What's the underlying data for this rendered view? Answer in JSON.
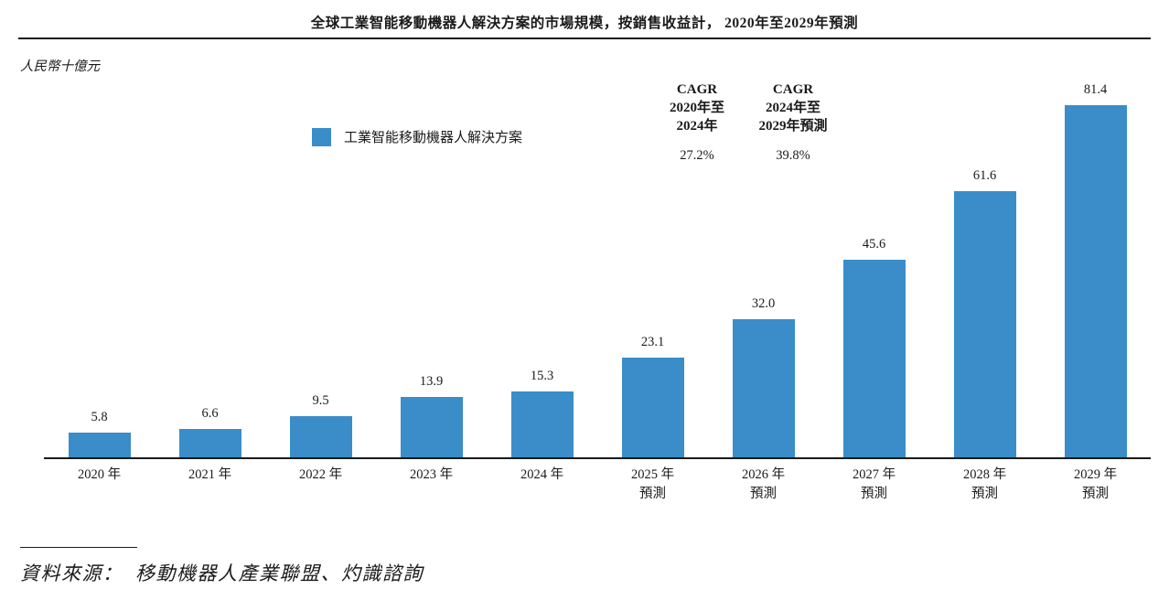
{
  "accent_color": "#3A8DC8",
  "header": {
    "title": "全球工業智能移動機器人解決方案的市場規模，按銷售收益計， 2020年至2029年預測"
  },
  "y_axis_unit": "人民幣十億元",
  "legend": {
    "label": "工業智能移動機器人解決方案"
  },
  "cagr_columns": [
    {
      "line1": "CAGR",
      "line2": "2020年至",
      "line3": "2024年",
      "value": "27.2%"
    },
    {
      "line1": "CAGR",
      "line2": "2024年至",
      "line3": "2029年預測",
      "value": "39.8%"
    }
  ],
  "footer": {
    "source": "資料來源：  移動機器人產業聯盟、灼識諮詢"
  },
  "chart_data": {
    "type": "bar",
    "title": "全球工業智能移動機器人解決方案的市場規模，按銷售收益計， 2020年至2029年預測",
    "xlabel": "",
    "ylabel": "人民幣十億元",
    "categories": [
      "2020 年",
      "2021 年",
      "2022 年",
      "2023 年",
      "2024 年",
      "2025 年",
      "2026 年",
      "2027 年",
      "2028 年",
      "2029 年"
    ],
    "category_subs": [
      "",
      "",
      "",
      "",
      "",
      "預測",
      "預測",
      "預測",
      "預測",
      "預測"
    ],
    "values": [
      5.8,
      6.6,
      9.5,
      13.9,
      15.3,
      23.1,
      32.0,
      45.6,
      61.6,
      81.4
    ],
    "value_labels": [
      "5.8",
      "6.6",
      "9.5",
      "13.9",
      "15.3",
      "23.1",
      "32.0",
      "45.6",
      "61.6",
      "81.4"
    ],
    "ylim": [
      0,
      88
    ],
    "grid": false,
    "bar_color": "#3A8DC8",
    "legend_entries": [
      "工業智能移動機器人解決方案"
    ],
    "legend_position": "upper-left",
    "annotations": [
      "CAGR 2020年至2024年: 27.2%",
      "CAGR 2024年至2029年預測: 39.8%"
    ]
  }
}
